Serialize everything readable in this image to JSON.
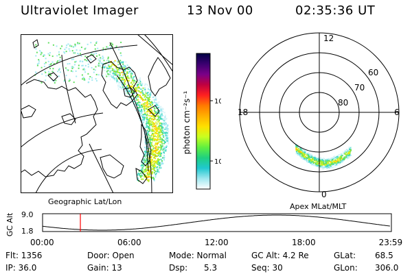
{
  "header": {
    "instrument": "Ultraviolet Imager",
    "date": "13 Nov 00",
    "time": "02:35:36 UT"
  },
  "geo_panel": {
    "label": "Geographic Lat/Lon"
  },
  "colorbar": {
    "unit": "photon cm⁻²s⁻¹",
    "tick_100": "100",
    "tick_10": "10",
    "colors": [
      "#000044",
      "#3a0070",
      "#7a0088",
      "#c00040",
      "#ff2020",
      "#ff7a00",
      "#ffb000",
      "#ffe000",
      "#c8ff20",
      "#60f040",
      "#20d080",
      "#20c8d0",
      "#a0e8f0",
      "#ffffff"
    ]
  },
  "polar_panel": {
    "label": "Apex MLat/MLT",
    "mlt_top": "12",
    "mlt_left": "18",
    "mlt_right": "6",
    "mlt_bottom": "0",
    "lat_60": "60",
    "lat_70": "70",
    "lat_80": "80"
  },
  "timeline": {
    "ylabel": "GC Alt",
    "ymax": "9.0",
    "ymin": "1.8",
    "ticks": [
      "00:00",
      "06:00",
      "12:00",
      "18:00",
      "23:59"
    ],
    "current_hour": 2.6,
    "marker_color": "#ff0000"
  },
  "footer": {
    "flt": "Flt: 1356",
    "ip": "IP: 36.0",
    "door": "Door: Open",
    "gain": "Gain: 13",
    "mode": "Mode: Normal",
    "dsp": "Dsp:",
    "dsp_value": "5.3",
    "gc_alt": "GC Alt: 4.2 Re",
    "seq": "Seq: 30",
    "glat": "GLat:",
    "glat_value": "68.5",
    "glon": "GLon:",
    "glon_value": "306.0"
  }
}
